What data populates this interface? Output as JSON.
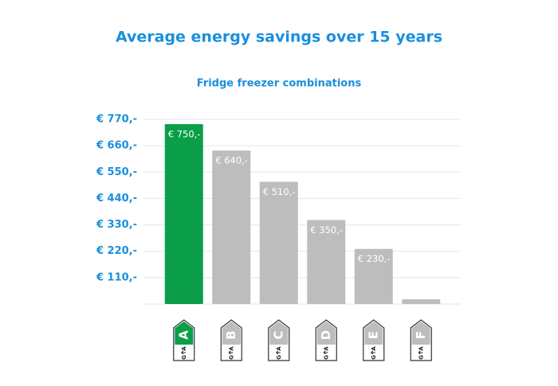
{
  "chart_data": {
    "type": "bar",
    "title": "Average energy savings over 15 years",
    "subtitle": "Fridge freezer combinations",
    "categories": [
      "A",
      "B",
      "C",
      "D",
      "E",
      "F"
    ],
    "values": [
      750,
      640,
      510,
      350,
      230,
      20
    ],
    "value_labels": [
      "€ 750,-",
      "€ 640,-",
      "€ 510,-",
      "€ 350,-",
      "€ 230,-",
      null
    ],
    "colors": [
      "#0a9e48",
      "#bdbdbd",
      "#bdbdbd",
      "#bdbdbd",
      "#bdbdbd",
      "#bdbdbd"
    ],
    "badge_range": [
      "A",
      "G"
    ],
    "ylim": [
      0,
      770
    ],
    "yticks": [
      {
        "value": 110,
        "label": "€ 110,-"
      },
      {
        "value": 220,
        "label": "€ 220,-"
      },
      {
        "value": 330,
        "label": "€ 330,-"
      },
      {
        "value": 440,
        "label": "€ 440,-"
      },
      {
        "value": 550,
        "label": "€ 550,-"
      },
      {
        "value": 660,
        "label": "€ 660,-"
      },
      {
        "value": 770,
        "label": "€ 770,-"
      }
    ],
    "grid": true
  }
}
